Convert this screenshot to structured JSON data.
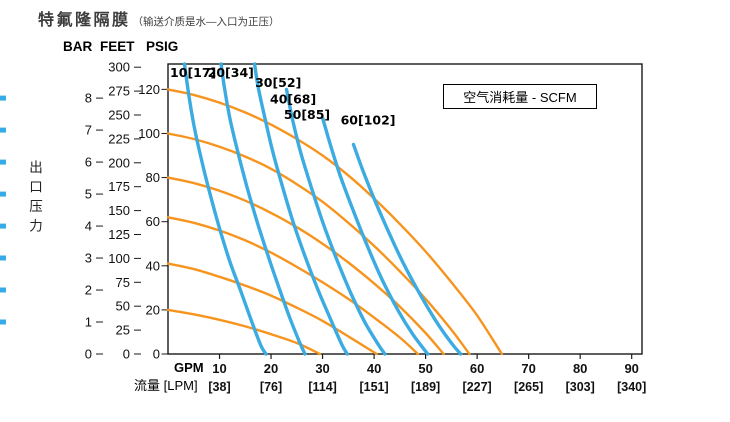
{
  "title": {
    "main": "特氟隆隔膜",
    "note": "（输送介质是水—入口为正压）"
  },
  "colors": {
    "water_curve": "#F7941E",
    "air_curve": "#3BABE2",
    "axis": "#1A1A1A",
    "edge_marker": "#35ACE8"
  },
  "artifacts": {
    "edge_marker_bars": [
      8,
      7,
      6,
      5,
      4,
      3,
      2,
      1
    ]
  },
  "chart_data": {
    "type": "line",
    "title": "特氟隆隔膜（输送介质是水—入口为正压）",
    "legend": "空气消耗量 - SCFM",
    "x_axis": {
      "unit_primary": "GPM",
      "unit_secondary": "流量 [LPM]",
      "max_gpm": 92,
      "ticks": [
        {
          "gpm": 10,
          "lpm": "[38]"
        },
        {
          "gpm": 20,
          "lpm": "[76]"
        },
        {
          "gpm": 30,
          "lpm": "[114]"
        },
        {
          "gpm": 40,
          "lpm": "[151]"
        },
        {
          "gpm": 50,
          "lpm": "[189]"
        },
        {
          "gpm": 60,
          "lpm": "[227]"
        },
        {
          "gpm": 70,
          "lpm": "[265]"
        },
        {
          "gpm": 80,
          "lpm": "[303]"
        },
        {
          "gpm": 90,
          "lpm": "[340]"
        }
      ]
    },
    "y_axis": {
      "title": "出口压力",
      "max_psig": 131.5,
      "scales": [
        {
          "name": "BAR",
          "psi_per_unit": 14.504,
          "ticks": [
            8,
            7,
            6,
            5,
            4,
            3,
            2,
            1,
            0
          ]
        },
        {
          "name": "FEET",
          "psi_per_unit": 0.4335,
          "ticks": [
            300,
            275,
            250,
            225,
            200,
            175,
            150,
            125,
            100,
            75,
            50,
            25,
            0
          ]
        },
        {
          "name": "PSIG",
          "psi_per_unit": 1,
          "ticks": [
            120,
            100,
            80,
            60,
            40,
            20,
            0
          ]
        }
      ]
    },
    "series_water": [
      {
        "name": "inlet-120-psig",
        "points": [
          [
            0,
            120
          ],
          [
            5,
            117.5
          ],
          [
            10,
            114
          ],
          [
            15,
            109.5
          ],
          [
            20,
            104
          ],
          [
            25,
            97.5
          ],
          [
            30,
            90
          ],
          [
            35,
            81
          ],
          [
            40,
            70.5
          ],
          [
            45,
            59
          ],
          [
            50,
            46.5
          ],
          [
            55,
            32.5
          ],
          [
            60,
            17.5
          ],
          [
            64.8,
            0
          ]
        ]
      },
      {
        "name": "inlet-100-psig",
        "points": [
          [
            0,
            100
          ],
          [
            5,
            97.5
          ],
          [
            10,
            94
          ],
          [
            15,
            89.5
          ],
          [
            20,
            84
          ],
          [
            25,
            77
          ],
          [
            30,
            69
          ],
          [
            35,
            59.5
          ],
          [
            40,
            49
          ],
          [
            45,
            37.5
          ],
          [
            50,
            25
          ],
          [
            55,
            11
          ],
          [
            58.5,
            0
          ]
        ]
      },
      {
        "name": "inlet-80-psig",
        "points": [
          [
            0,
            80
          ],
          [
            5,
            77.5
          ],
          [
            10,
            74
          ],
          [
            15,
            69.5
          ],
          [
            20,
            64
          ],
          [
            25,
            57.5
          ],
          [
            30,
            50
          ],
          [
            35,
            41.5
          ],
          [
            40,
            32
          ],
          [
            45,
            21.5
          ],
          [
            50,
            9.5
          ],
          [
            53.5,
            0
          ]
        ]
      },
      {
        "name": "inlet-60-psig",
        "points": [
          [
            0,
            62
          ],
          [
            5,
            59.5
          ],
          [
            10,
            56
          ],
          [
            15,
            51.5
          ],
          [
            20,
            46
          ],
          [
            25,
            39.5
          ],
          [
            30,
            32.5
          ],
          [
            35,
            25
          ],
          [
            40,
            16.5
          ],
          [
            45,
            7.5
          ],
          [
            48.5,
            0
          ]
        ]
      },
      {
        "name": "inlet-40-psig",
        "points": [
          [
            0,
            41
          ],
          [
            5,
            38.5
          ],
          [
            10,
            35
          ],
          [
            15,
            31
          ],
          [
            20,
            26.5
          ],
          [
            25,
            21
          ],
          [
            30,
            15
          ],
          [
            35,
            8
          ],
          [
            40.5,
            0
          ]
        ]
      },
      {
        "name": "inlet-20-psig",
        "points": [
          [
            0,
            20
          ],
          [
            5,
            18
          ],
          [
            10,
            15.5
          ],
          [
            15,
            12.5
          ],
          [
            20,
            9
          ],
          [
            25,
            5
          ],
          [
            29.5,
            0
          ]
        ]
      }
    ],
    "series_air": [
      {
        "name": "10[17]",
        "label_pos": [
          0.4,
          125.6
        ],
        "points": [
          [
            3.2,
            131.5
          ],
          [
            4,
            118
          ],
          [
            5,
            104
          ],
          [
            6.3,
            90
          ],
          [
            8,
            74
          ],
          [
            10,
            57
          ],
          [
            12,
            42
          ],
          [
            14.2,
            28
          ],
          [
            16.2,
            15
          ],
          [
            18,
            4
          ],
          [
            19,
            0
          ]
        ]
      },
      {
        "name": "20[34]",
        "label_pos": [
          7.7,
          125.6
        ],
        "points": [
          [
            10.3,
            131.5
          ],
          [
            11,
            120
          ],
          [
            12,
            107
          ],
          [
            13.5,
            92
          ],
          [
            15.3,
            76
          ],
          [
            17.3,
            60
          ],
          [
            19.5,
            44
          ],
          [
            21.7,
            29
          ],
          [
            23.7,
            16
          ],
          [
            25.6,
            5
          ],
          [
            26.6,
            0
          ]
        ]
      },
      {
        "name": "30[52]",
        "label_pos": [
          16.9,
          121
        ],
        "points": [
          [
            16.8,
            131.5
          ],
          [
            17.5,
            121
          ],
          [
            18.8,
            107
          ],
          [
            20.3,
            92
          ],
          [
            22.2,
            76
          ],
          [
            24.4,
            59
          ],
          [
            26.8,
            43
          ],
          [
            29.3,
            28
          ],
          [
            31.7,
            15
          ],
          [
            33.8,
            4
          ],
          [
            34.8,
            0
          ]
        ]
      },
      {
        "name": "40[68]",
        "label_pos": [
          19.8,
          113.5
        ],
        "points": [
          [
            23,
            120
          ],
          [
            24.2,
            106
          ],
          [
            25.8,
            91
          ],
          [
            27.9,
            75
          ],
          [
            30.3,
            58
          ],
          [
            32.9,
            42
          ],
          [
            35.6,
            27
          ],
          [
            38.3,
            14
          ],
          [
            40.9,
            4
          ],
          [
            42.1,
            0
          ]
        ]
      },
      {
        "name": "50[85]",
        "label_pos": [
          22.5,
          106.5
        ],
        "points": [
          [
            30,
            107
          ],
          [
            31.5,
            95
          ],
          [
            33.4,
            81
          ],
          [
            35.8,
            66
          ],
          [
            38.5,
            50
          ],
          [
            41.5,
            34
          ],
          [
            44.6,
            20
          ],
          [
            47.5,
            9
          ],
          [
            50.4,
            0
          ]
        ]
      },
      {
        "name": "60[102]",
        "label_pos": [
          33.5,
          104
        ],
        "points": [
          [
            36,
            95
          ],
          [
            37.7,
            84
          ],
          [
            39.9,
            71
          ],
          [
            42.5,
            57
          ],
          [
            45.5,
            42
          ],
          [
            48.7,
            28
          ],
          [
            52,
            15
          ],
          [
            55,
            5
          ],
          [
            56.8,
            0
          ]
        ]
      }
    ]
  }
}
